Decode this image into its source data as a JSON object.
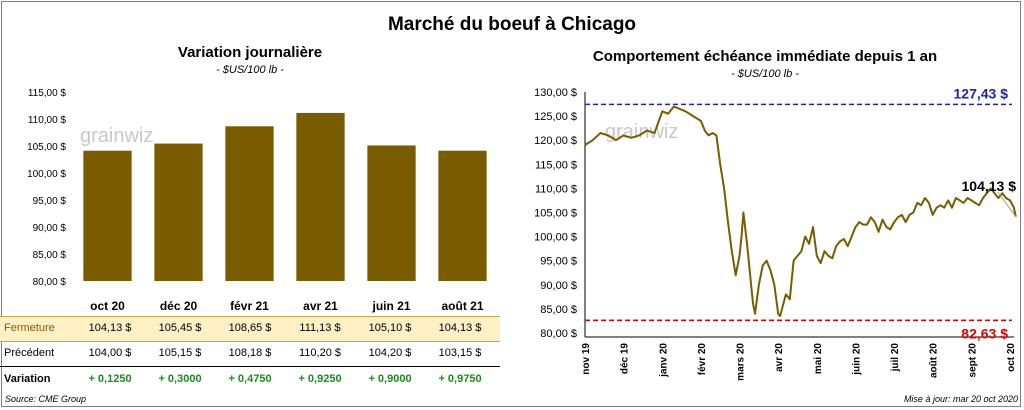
{
  "title": "Marché du boeuf à Chicago",
  "left_panel": {
    "title": "Variation journalière",
    "unit": "- $US/100 lb -",
    "watermark": "grainwiz"
  },
  "right_panel": {
    "title": "Comportement échéance immédiate depuis 1 an",
    "unit": "- $US/100 lb -",
    "watermark": "grainwiz"
  },
  "table": {
    "rows": [
      {
        "label": "Fermeture",
        "values": [
          "104,13  $",
          "105,45  $",
          "108,65  $",
          "111,13  $",
          "105,10  $",
          "104,13  $"
        ]
      },
      {
        "label": "Précédent",
        "values": [
          "104,00  $",
          "105,15  $",
          "108,18  $",
          "110,20  $",
          "104,20  $",
          "103,15  $"
        ]
      },
      {
        "label": "Variation",
        "values": [
          "+ 0,1250",
          "+ 0,3000",
          "+ 0,4750",
          "+ 0,9250",
          "+ 0,9000",
          "+ 0,9750"
        ]
      }
    ]
  },
  "footer": {
    "source": "Source: CME Group",
    "updated": "Mise à jour: mar 20 oct 2020"
  },
  "colors": {
    "bar": "#7a5c00",
    "line": "#7a5c00",
    "high_line": "#2222aa",
    "low_line": "#dd0000"
  },
  "chart_data": [
    {
      "type": "bar",
      "categories": [
        "oct 20",
        "déc 20",
        "févr 21",
        "avr 21",
        "juin 21",
        "août 21"
      ],
      "values": [
        104.13,
        105.45,
        108.65,
        111.13,
        105.1,
        104.13
      ],
      "ylim": [
        80,
        115
      ],
      "yticks": [
        "80,00 $",
        "85,00 $",
        "90,00 $",
        "95,00 $",
        "100,00 $",
        "105,00 $",
        "110,00 $",
        "115,00 $"
      ],
      "grid": false
    },
    {
      "type": "line",
      "ylim": [
        80,
        130
      ],
      "yticks": [
        "80,00 $",
        "85,00 $",
        "90,00 $",
        "95,00 $",
        "100,00 $",
        "105,00 $",
        "110,00 $",
        "115,00 $",
        "120,00 $",
        "125,00 $",
        "130,00 $"
      ],
      "xticks": [
        "nov 19",
        "déc 19",
        "janv 20",
        "févr 20",
        "mars 20",
        "avr 20",
        "mai 20",
        "juin 20",
        "juil 20",
        "août 20",
        "sept 20",
        "oct 20"
      ],
      "series": [
        {
          "x": [
            0,
            0.2,
            0.4,
            0.6,
            0.8,
            1.0,
            1.2,
            1.4,
            1.6,
            1.8,
            2.0,
            2.15,
            2.3,
            2.45,
            2.6,
            2.8,
            3.0,
            3.1,
            3.2,
            3.3,
            3.4,
            3.5,
            3.6,
            3.7,
            3.8,
            3.9,
            4.0,
            4.05,
            4.1,
            4.2,
            4.3,
            4.35,
            4.4,
            4.5,
            4.6,
            4.7,
            4.8,
            4.9,
            5.0,
            5.05,
            5.1,
            5.2,
            5.3,
            5.4,
            5.5,
            5.6,
            5.7,
            5.8,
            5.9,
            6.0,
            6.1,
            6.2,
            6.3,
            6.4,
            6.5,
            6.6,
            6.7,
            6.8,
            6.9,
            7.0,
            7.1,
            7.2,
            7.3,
            7.4,
            7.5,
            7.6,
            7.7,
            7.8,
            7.9,
            8.0,
            8.1,
            8.2,
            8.3,
            8.4,
            8.5,
            8.6,
            8.7,
            8.8,
            8.9,
            9.0,
            9.1,
            9.2,
            9.3,
            9.4,
            9.5,
            9.6,
            9.7,
            9.8,
            9.9,
            10.0,
            10.1,
            10.2,
            10.3,
            10.4,
            10.5,
            10.6,
            10.7,
            10.8,
            10.9,
            11.0,
            11.1,
            11.15
          ],
          "y": [
            119.0,
            120.0,
            121.5,
            121.0,
            120.0,
            121.0,
            120.5,
            121.0,
            122.0,
            121.5,
            126.0,
            125.5,
            127.0,
            126.5,
            126.0,
            125.0,
            124.0,
            122.0,
            121.0,
            121.5,
            121.0,
            115.0,
            110.0,
            103.0,
            97.0,
            92.0,
            96.0,
            100.0,
            105.0,
            98.0,
            90.0,
            86.0,
            84.0,
            90.0,
            94.0,
            95.0,
            93.0,
            90.0,
            84.0,
            83.5,
            85.0,
            88.0,
            87.0,
            95.0,
            96.0,
            97.0,
            100.0,
            98.5,
            102.0,
            96.0,
            94.5,
            97.0,
            96.0,
            95.5,
            98.0,
            99.0,
            99.5,
            98.0,
            100.0,
            102.0,
            103.0,
            102.5,
            102.5,
            104.0,
            103.0,
            101.0,
            103.5,
            102.0,
            101.5,
            103.0,
            104.0,
            104.5,
            103.0,
            104.5,
            105.0,
            107.0,
            106.5,
            108.0,
            107.0,
            104.5,
            106.0,
            106.5,
            106.0,
            107.5,
            106.0,
            108.0,
            107.5,
            107.0,
            108.0,
            107.5,
            107.0,
            106.5,
            108.0,
            109.0,
            110.0,
            109.0,
            108.0,
            109.0,
            108.0,
            107.5,
            106.0,
            104.13
          ]
        }
      ],
      "last_label": "104,13 $",
      "high": {
        "value": 127.43,
        "label": "127,43 $"
      },
      "low": {
        "value": 82.63,
        "label": "82,63 $"
      },
      "grid": false
    }
  ]
}
